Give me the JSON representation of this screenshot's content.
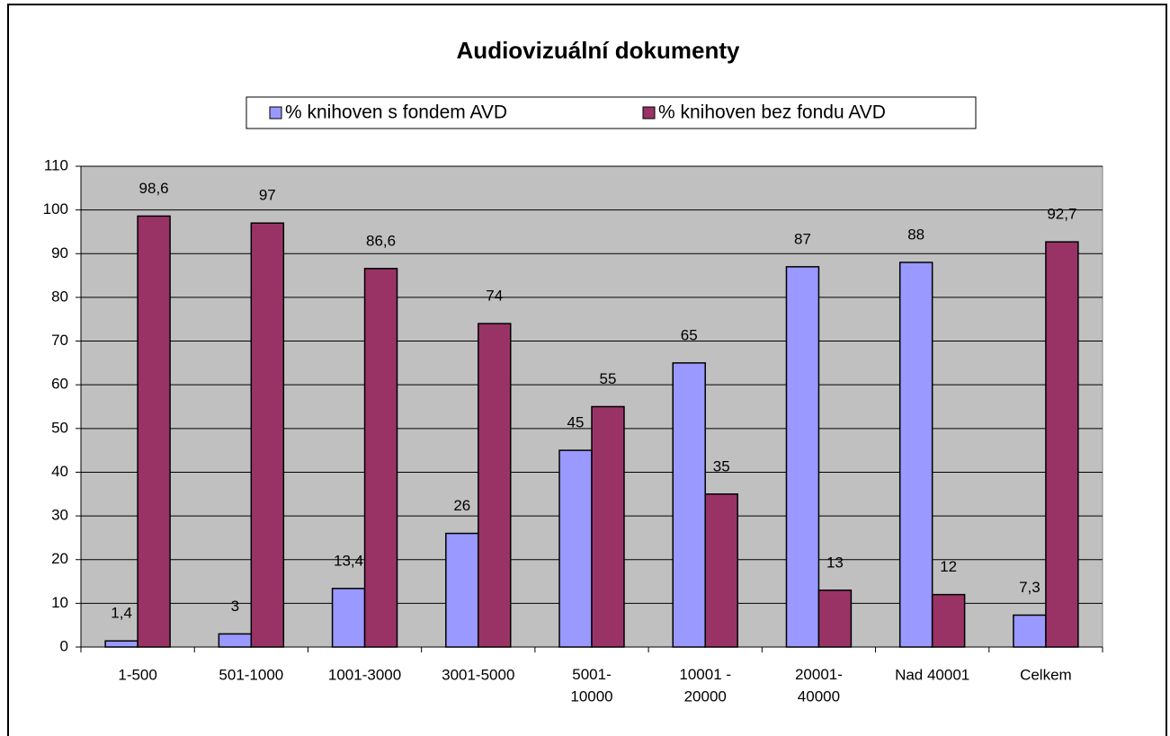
{
  "chart_data": {
    "type": "bar",
    "title": "Audiovizuální dokumenty",
    "categories": [
      "1-500",
      "501-1000",
      "1001-3000",
      "3001-5000",
      "5001-\n10000",
      "10001 -\n20000",
      "20001-\n40000",
      "Nad 40001",
      "Celkem"
    ],
    "series": [
      {
        "name": "% knihoven s fondem AVD",
        "color": "#9999ff",
        "values": [
          1.4,
          3,
          13.4,
          26,
          45,
          65,
          87,
          88,
          7.3
        ],
        "value_labels": [
          "1,4",
          "3",
          "13,4",
          "26",
          "45",
          "65",
          "87",
          "88",
          "7,3"
        ]
      },
      {
        "name": "% knihoven bez fondu AVD",
        "color": "#993366",
        "values": [
          98.6,
          97,
          86.6,
          74,
          55,
          35,
          13,
          12,
          92.7
        ],
        "value_labels": [
          "98,6",
          "97",
          "86,6",
          "74",
          "55",
          "35",
          "13",
          "12",
          "92,7"
        ]
      }
    ],
    "ylim": [
      0,
      110
    ],
    "yticks": [
      0,
      10,
      20,
      30,
      40,
      50,
      60,
      70,
      80,
      90,
      100,
      110
    ],
    "grid": true,
    "legend": "top",
    "plot_background": "#c0c0c0"
  }
}
